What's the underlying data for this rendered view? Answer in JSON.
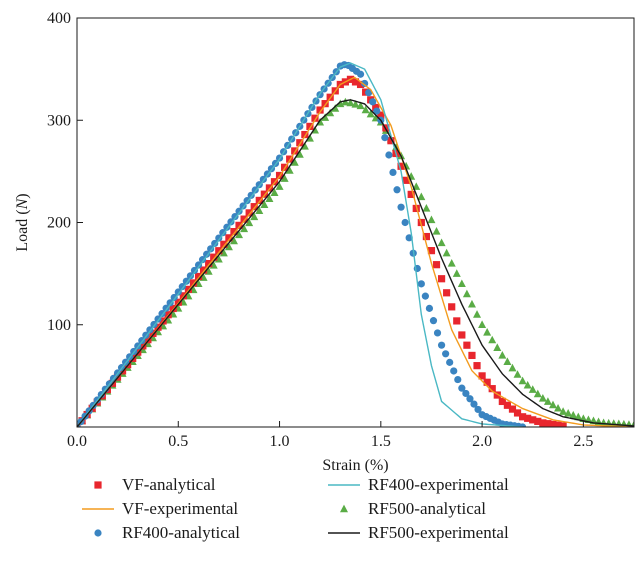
{
  "chart_data": {
    "type": "scatter",
    "xlabel": "Strain (%)",
    "ylabel_prefix": "Load (",
    "ylabel_unit": "N",
    "ylabel_suffix": ")",
    "xlim": [
      0,
      2.75
    ],
    "ylim": [
      0,
      400
    ],
    "xticks": [
      0.0,
      0.5,
      1.0,
      1.5,
      2.0,
      2.5
    ],
    "xtick_labels": [
      "0.0",
      "0.5",
      "1.0",
      "1.5",
      "2.0",
      "2.5"
    ],
    "yticks": [
      100,
      200,
      300,
      400
    ],
    "ytick_labels": [
      "100",
      "200",
      "300",
      "400"
    ],
    "grid": false,
    "legend_position": "bottom",
    "series": [
      {
        "name": "VF-analytical",
        "kind": "points",
        "marker": "square",
        "color": "#e8262d",
        "peak_x": 1.35,
        "peak_y": 340,
        "spacing": 0.025,
        "x_end": 2.4,
        "points": [
          [
            0.0,
            0
          ],
          [
            0.25,
            61
          ],
          [
            0.5,
            122
          ],
          [
            0.75,
            185
          ],
          [
            1.0,
            246
          ],
          [
            1.2,
            310
          ],
          [
            1.3,
            335
          ],
          [
            1.35,
            340
          ],
          [
            1.4,
            335
          ],
          [
            1.5,
            305
          ],
          [
            1.6,
            255
          ],
          [
            1.7,
            200
          ],
          [
            1.8,
            145
          ],
          [
            1.9,
            90
          ],
          [
            2.0,
            50
          ],
          [
            2.1,
            25
          ],
          [
            2.2,
            10
          ],
          [
            2.3,
            4
          ],
          [
            2.4,
            1
          ]
        ]
      },
      {
        "name": "VF-experimental",
        "kind": "line",
        "color": "#f39c1f",
        "points": [
          [
            0.0,
            0
          ],
          [
            0.25,
            60
          ],
          [
            0.5,
            121
          ],
          [
            0.75,
            183
          ],
          [
            1.0,
            245
          ],
          [
            1.2,
            308
          ],
          [
            1.3,
            335
          ],
          [
            1.37,
            342
          ],
          [
            1.45,
            330
          ],
          [
            1.55,
            295
          ],
          [
            1.65,
            235
          ],
          [
            1.75,
            160
          ],
          [
            1.85,
            95
          ],
          [
            1.95,
            55
          ],
          [
            2.05,
            35
          ],
          [
            2.2,
            18
          ],
          [
            2.35,
            7
          ],
          [
            2.5,
            2
          ],
          [
            2.75,
            0
          ]
        ]
      },
      {
        "name": "RF400-analytical",
        "kind": "points",
        "marker": "circle",
        "color": "#3a84c1",
        "peak_x": 1.32,
        "peak_y": 355,
        "spacing": 0.02,
        "x_end": 2.2,
        "points": [
          [
            0.0,
            0
          ],
          [
            0.25,
            66
          ],
          [
            0.5,
            132
          ],
          [
            0.75,
            198
          ],
          [
            1.0,
            263
          ],
          [
            1.2,
            325
          ],
          [
            1.3,
            353
          ],
          [
            1.33,
            355
          ],
          [
            1.4,
            345
          ],
          [
            1.5,
            300
          ],
          [
            1.6,
            215
          ],
          [
            1.7,
            140
          ],
          [
            1.8,
            80
          ],
          [
            1.9,
            38
          ],
          [
            2.0,
            12
          ],
          [
            2.1,
            3
          ],
          [
            2.2,
            0
          ]
        ]
      },
      {
        "name": "RF400-experimental",
        "kind": "line",
        "color": "#4ab8c4",
        "points": [
          [
            0.0,
            0
          ],
          [
            0.25,
            65
          ],
          [
            0.5,
            130
          ],
          [
            0.75,
            196
          ],
          [
            1.0,
            262
          ],
          [
            1.2,
            326
          ],
          [
            1.3,
            352
          ],
          [
            1.35,
            356
          ],
          [
            1.42,
            350
          ],
          [
            1.5,
            320
          ],
          [
            1.6,
            250
          ],
          [
            1.65,
            190
          ],
          [
            1.7,
            110
          ],
          [
            1.75,
            60
          ],
          [
            1.8,
            25
          ],
          [
            1.9,
            8
          ],
          [
            2.0,
            3
          ],
          [
            2.2,
            0
          ]
        ]
      },
      {
        "name": "RF500-analytical",
        "kind": "points",
        "marker": "triangle",
        "color": "#5aac46",
        "peak_x": 1.32,
        "peak_y": 318,
        "spacing": 0.025,
        "x_end": 2.75,
        "points": [
          [
            0.0,
            0
          ],
          [
            0.25,
            58
          ],
          [
            0.5,
            116
          ],
          [
            0.75,
            176
          ],
          [
            1.0,
            235
          ],
          [
            1.2,
            298
          ],
          [
            1.3,
            316
          ],
          [
            1.33,
            318
          ],
          [
            1.4,
            314
          ],
          [
            1.5,
            298
          ],
          [
            1.6,
            265
          ],
          [
            1.7,
            225
          ],
          [
            1.8,
            180
          ],
          [
            1.9,
            140
          ],
          [
            2.0,
            100
          ],
          [
            2.1,
            70
          ],
          [
            2.2,
            45
          ],
          [
            2.3,
            28
          ],
          [
            2.4,
            15
          ],
          [
            2.5,
            8
          ],
          [
            2.6,
            4
          ],
          [
            2.75,
            2
          ]
        ]
      },
      {
        "name": "RF500-experimental",
        "kind": "line",
        "color": "#1a1a1a",
        "points": [
          [
            0.0,
            0
          ],
          [
            0.25,
            60
          ],
          [
            0.5,
            120
          ],
          [
            0.75,
            180
          ],
          [
            1.0,
            240
          ],
          [
            1.2,
            300
          ],
          [
            1.3,
            318
          ],
          [
            1.35,
            320
          ],
          [
            1.42,
            316
          ],
          [
            1.5,
            300
          ],
          [
            1.6,
            265
          ],
          [
            1.7,
            215
          ],
          [
            1.8,
            165
          ],
          [
            1.9,
            120
          ],
          [
            2.0,
            80
          ],
          [
            2.1,
            52
          ],
          [
            2.2,
            32
          ],
          [
            2.3,
            18
          ],
          [
            2.4,
            10
          ],
          [
            2.55,
            4
          ],
          [
            2.75,
            1
          ]
        ]
      }
    ]
  }
}
